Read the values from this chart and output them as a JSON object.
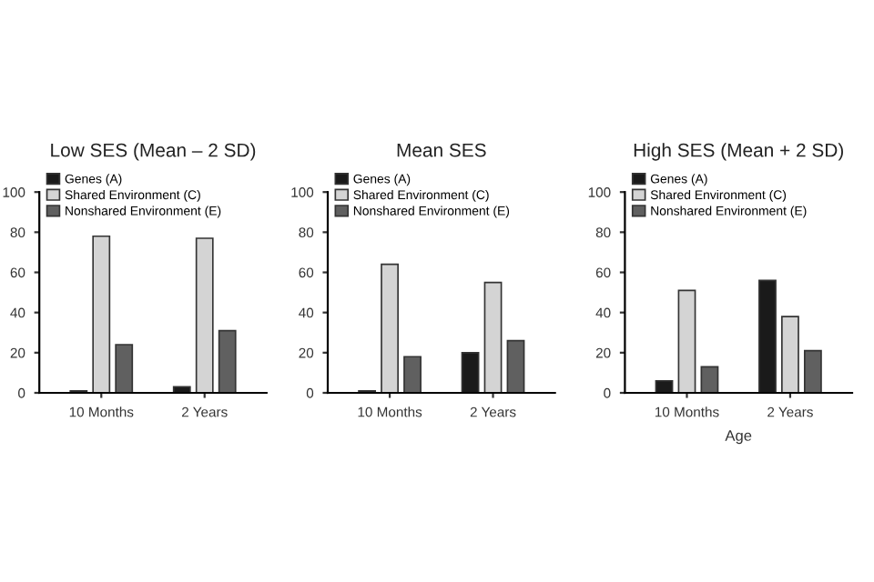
{
  "chart_data": [
    {
      "type": "bar",
      "title": "Low SES (Mean – 2 SD)",
      "categories": [
        "10 Months",
        "2 Years"
      ],
      "ylim": [
        0,
        100
      ],
      "yticks": [
        0,
        20,
        40,
        60,
        80,
        100
      ],
      "grid": false,
      "legend": "top left",
      "series": [
        {
          "name": "Genes (A)",
          "color": "#1a1a1a",
          "values": [
            1,
            3
          ]
        },
        {
          "name": "Shared Environment (C)",
          "color": "#d4d4d4",
          "values": [
            78,
            77
          ]
        },
        {
          "name": "Nonshared Environment (E)",
          "color": "#606060",
          "values": [
            24,
            31
          ]
        }
      ]
    },
    {
      "type": "bar",
      "title": "Mean SES",
      "categories": [
        "10 Months",
        "2 Years"
      ],
      "ylim": [
        0,
        100
      ],
      "yticks": [
        0,
        20,
        40,
        60,
        80,
        100
      ],
      "grid": false,
      "legend": "top left",
      "series": [
        {
          "name": "Genes (A)",
          "color": "#1a1a1a",
          "values": [
            1,
            20
          ]
        },
        {
          "name": "Shared Environment (C)",
          "color": "#d4d4d4",
          "values": [
            64,
            55
          ]
        },
        {
          "name": "Nonshared Environment (E)",
          "color": "#606060",
          "values": [
            18,
            26
          ]
        }
      ]
    },
    {
      "type": "bar",
      "title": "High SES (Mean + 2 SD)",
      "xlabel": "Age",
      "categories": [
        "10 Months",
        "2 Years"
      ],
      "ylim": [
        0,
        100
      ],
      "yticks": [
        0,
        20,
        40,
        60,
        80,
        100
      ],
      "grid": false,
      "legend": "top left",
      "series": [
        {
          "name": "Genes (A)",
          "color": "#1a1a1a",
          "values": [
            6,
            56
          ]
        },
        {
          "name": "Shared Environment (C)",
          "color": "#d4d4d4",
          "values": [
            51,
            38
          ]
        },
        {
          "name": "Nonshared Environment (E)",
          "color": "#606060",
          "values": [
            13,
            21
          ]
        }
      ]
    }
  ]
}
